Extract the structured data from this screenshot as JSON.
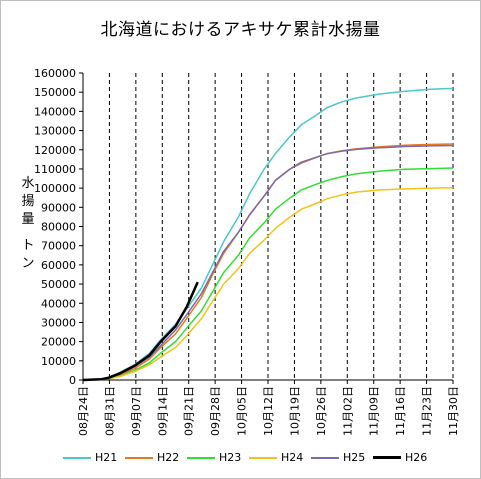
{
  "chart_data": {
    "type": "line",
    "title": "北海道におけるアキサケ累計水揚量",
    "ylabel_chars": [
      "水",
      "揚",
      "量"
    ],
    "ylabel_unit_chars": [
      "ト",
      "ン"
    ],
    "ylim": [
      0,
      160000
    ],
    "yticks": [
      "0",
      "10000",
      "20000",
      "30000",
      "40000",
      "50000",
      "60000",
      "70000",
      "80000",
      "90000",
      "100000",
      "110000",
      "120000",
      "130000",
      "140000",
      "150000",
      "160000"
    ],
    "xlim": [
      0,
      100
    ],
    "xticks": [
      "08月24日",
      "08月31日",
      "09月07日",
      "09月14日",
      "09月21日",
      "09月28日",
      "10月05日",
      "10月12日",
      "10月19日",
      "10月26日",
      "11月02日",
      "11月09日",
      "11月16日",
      "11月23日",
      "11月30日"
    ],
    "grid": "vertical dashed",
    "legend_position": "bottom",
    "series": [
      {
        "name": "H21",
        "color": "#4bc8c8",
        "width": 1.5,
        "x": [
          0,
          5,
          7,
          10,
          14,
          18,
          21,
          25,
          28,
          32,
          35,
          38,
          42,
          45,
          49,
          52,
          56,
          59,
          63,
          66,
          70,
          74,
          80,
          87,
          94,
          100
        ],
        "y": [
          0,
          500,
          1500,
          4000,
          8000,
          14000,
          21000,
          29000,
          37000,
          48000,
          60000,
          72000,
          85000,
          97000,
          110000,
          118000,
          127000,
          133000,
          138000,
          142000,
          145000,
          147000,
          149000,
          150500,
          151500,
          152000
        ]
      },
      {
        "name": "H22",
        "color": "#e87722",
        "width": 1.5,
        "x": [
          0,
          5,
          7,
          10,
          14,
          18,
          21,
          25,
          28,
          32,
          35,
          38,
          42,
          45,
          49,
          52,
          56,
          59,
          63,
          66,
          70,
          74,
          80,
          87,
          94,
          100
        ],
        "y": [
          0,
          300,
          1000,
          2500,
          6000,
          11000,
          17000,
          24000,
          32000,
          43000,
          55000,
          66000,
          77000,
          86000,
          96000,
          104000,
          110000,
          113000,
          116000,
          118000,
          119500,
          120500,
          121500,
          122300,
          122800,
          123000
        ]
      },
      {
        "name": "H23",
        "color": "#33dd33",
        "width": 1.5,
        "x": [
          0,
          5,
          7,
          10,
          14,
          18,
          21,
          25,
          28,
          32,
          35,
          38,
          42,
          45,
          49,
          52,
          56,
          59,
          63,
          66,
          70,
          74,
          80,
          87,
          94,
          100
        ],
        "y": [
          0,
          300,
          800,
          2000,
          5000,
          9000,
          14000,
          20000,
          27000,
          36000,
          46000,
          56000,
          65000,
          74000,
          82000,
          89000,
          95000,
          99000,
          102000,
          104000,
          106000,
          107500,
          108800,
          109800,
          110200,
          110500
        ]
      },
      {
        "name": "H24",
        "color": "#f0c419",
        "width": 1.5,
        "x": [
          0,
          5,
          7,
          10,
          14,
          18,
          21,
          25,
          28,
          32,
          35,
          38,
          42,
          45,
          49,
          52,
          56,
          59,
          63,
          66,
          70,
          74,
          80,
          87,
          94,
          100
        ],
        "y": [
          0,
          300,
          700,
          1800,
          4500,
          8000,
          12000,
          17000,
          23000,
          32000,
          41000,
          50000,
          58000,
          66000,
          73000,
          79000,
          85000,
          89000,
          92000,
          94500,
          96500,
          98000,
          99000,
          99600,
          100000,
          100200
        ]
      },
      {
        "name": "H25",
        "color": "#7a6aa8",
        "width": 1.5,
        "x": [
          0,
          5,
          7,
          10,
          14,
          18,
          21,
          25,
          28,
          32,
          35,
          38,
          42,
          45,
          49,
          52,
          56,
          59,
          63,
          66,
          70,
          74,
          80,
          87,
          94,
          100
        ],
        "y": [
          0,
          400,
          1200,
          3000,
          7000,
          12000,
          18000,
          26000,
          34000,
          45000,
          56000,
          67000,
          77000,
          86000,
          96000,
          104000,
          110000,
          113500,
          116000,
          118000,
          119300,
          120200,
          121000,
          121700,
          122000,
          122200
        ]
      },
      {
        "name": "H26",
        "color": "#000000",
        "width": 2.5,
        "x": [
          0,
          5,
          7,
          10,
          14,
          18,
          21,
          25,
          28,
          31
        ],
        "y": [
          0,
          400,
          1200,
          3500,
          7500,
          13000,
          20000,
          28000,
          38000,
          51000
        ]
      }
    ]
  }
}
